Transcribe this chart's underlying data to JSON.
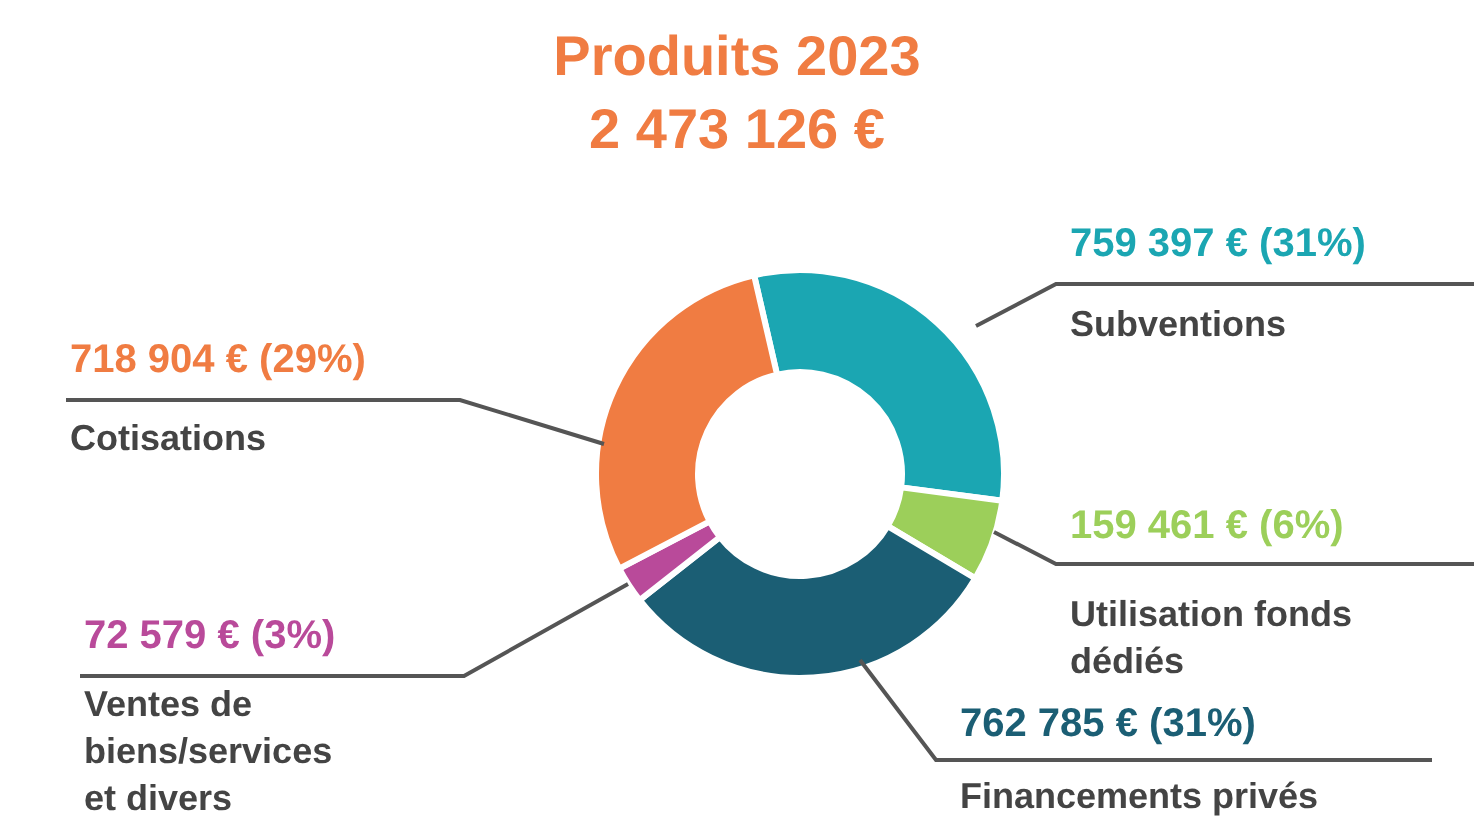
{
  "chart_data": {
    "type": "donut",
    "title": "Produits 2023\n2 473 126 €",
    "categories": [
      "Subventions",
      "Utilisation fonds\ndédiés",
      "Financements privés",
      "Ventes de\nbiens/services\net divers",
      "Cotisations"
    ],
    "values": [
      759397,
      159461,
      762785,
      72579,
      718904
    ],
    "colors": [
      "#1ba6b2",
      "#9ccf5a",
      "#1b5e74",
      "#b94a9a",
      "#f07c42"
    ],
    "value_labels": [
      "759 397 € (31%)",
      "159 461 € (6%)",
      "762 785 € (31%)",
      "72 579 € (3%)",
      "718 904 € (29%)"
    ]
  }
}
